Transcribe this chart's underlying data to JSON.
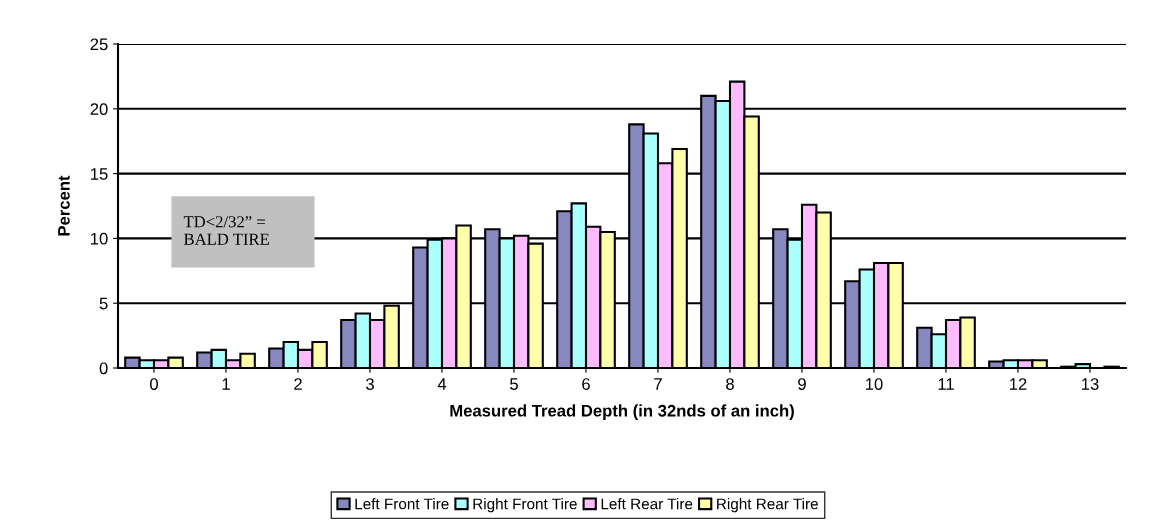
{
  "chart_data": {
    "type": "bar",
    "xlabel": "Measured Tread Depth (in 32nds of an inch)",
    "ylabel": "Percent",
    "categories": [
      "0",
      "1",
      "2",
      "3",
      "4",
      "5",
      "6",
      "7",
      "8",
      "9",
      "10",
      "11",
      "12",
      "13"
    ],
    "series": [
      {
        "name": "Left Front Tire",
        "color": "#8888c0",
        "values": [
          0.8,
          1.2,
          1.5,
          3.7,
          9.3,
          10.7,
          12.1,
          18.8,
          21.0,
          10.7,
          6.7,
          3.1,
          0.5,
          0.1
        ]
      },
      {
        "name": "Right Front Tire",
        "color": "#aaffff",
        "values": [
          0.6,
          1.4,
          2.0,
          4.2,
          9.9,
          10.0,
          12.7,
          18.1,
          20.6,
          9.9,
          7.6,
          2.6,
          0.6,
          0.3
        ]
      },
      {
        "name": "Left Rear Tire",
        "color": "#ffbbff",
        "values": [
          0.6,
          0.6,
          1.4,
          3.7,
          10.0,
          10.2,
          10.9,
          15.8,
          22.1,
          12.6,
          8.1,
          3.7,
          0.6,
          null
        ]
      },
      {
        "name": "Right Rear Tire",
        "color": "#ffffaa",
        "values": [
          0.8,
          1.1,
          2.0,
          4.8,
          11.0,
          9.6,
          10.5,
          16.9,
          19.4,
          12.0,
          8.1,
          3.9,
          0.6,
          0.1
        ]
      }
    ],
    "ylim": [
      0,
      25
    ],
    "yticks": [
      0,
      5,
      10,
      15,
      20,
      25
    ],
    "grid": "y",
    "legend": "bottom",
    "annotations": [
      "TD<2/32” =\nBALD TIRE"
    ]
  }
}
